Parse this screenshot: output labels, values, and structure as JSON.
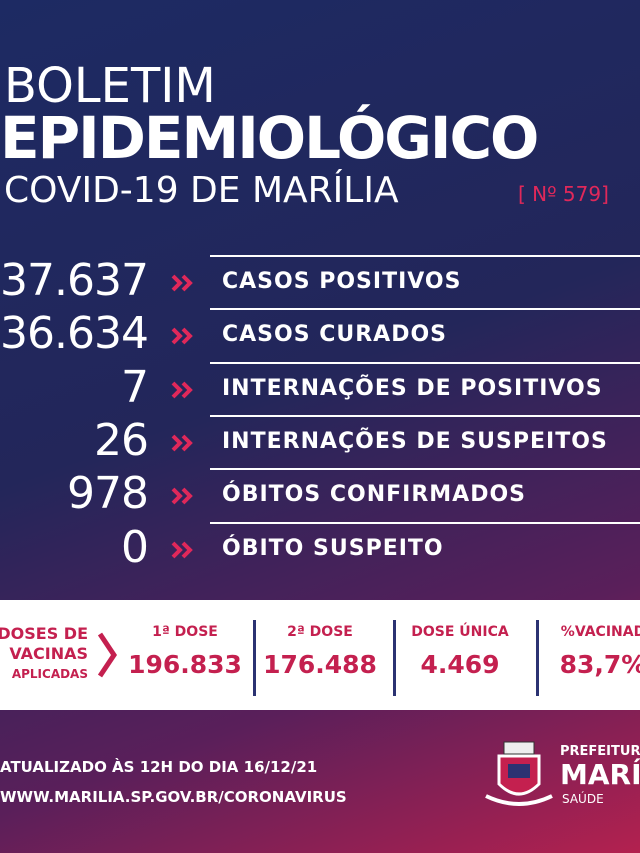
{
  "header": {
    "line1": "BOLETIM",
    "line2": "EPIDEMIOLÓGICO",
    "line3": "COVID-19 DE MARÍLIA",
    "edition": "[ Nº 579]"
  },
  "stats": [
    {
      "number": "37.637",
      "label": "CASOS POSITIVOS"
    },
    {
      "number": "36.634",
      "label": "CASOS CURADOS"
    },
    {
      "number": "7",
      "label": "INTERNAÇÕES DE POSITIVOS"
    },
    {
      "number": "26",
      "label": "INTERNAÇÕES DE SUSPEITOS"
    },
    {
      "number": "978",
      "label": "ÓBITOS CONFIRMADOS"
    },
    {
      "number": "0",
      "label": "ÓBITO SUSPEITO"
    }
  ],
  "vaccines": {
    "heading": [
      "DOSES DE",
      "VACINAS",
      "APLICADAS"
    ],
    "columns": [
      {
        "label": "1ª DOSE",
        "value": "196.833"
      },
      {
        "label": "2ª DOSE",
        "value": "176.488"
      },
      {
        "label": "DOSE ÚNICA",
        "value": "4.469"
      },
      {
        "label": "%VACINAD",
        "value": "83,7%"
      }
    ]
  },
  "footer": {
    "updated": "ATUALIZADO ÀS 12H DO DIA 16/12/21",
    "site": "WWW.MARILIA.SP.GOV.BR/",
    "site_bold": "CORONAVIRUS",
    "org1": "PREFEITUR",
    "org2": "MARÍ",
    "org3": "SAÚDE"
  }
}
